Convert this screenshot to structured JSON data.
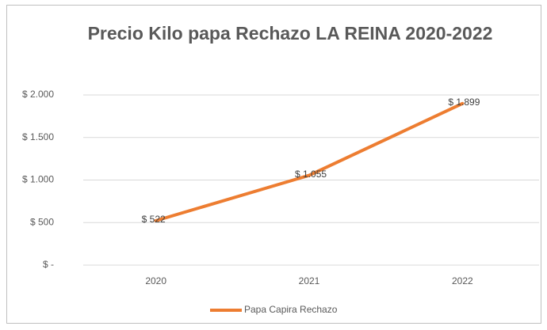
{
  "chart_data": {
    "type": "line",
    "title": "Precio Kilo papa Rechazo LA REINA 2020-2022",
    "categories": [
      "2020",
      "2021",
      "2022"
    ],
    "series": [
      {
        "name": "Papa Capira Rechazo",
        "color": "#ed7d31",
        "values": [
          522,
          1055,
          1899
        ],
        "value_labels": [
          "$ 522",
          "$ 1.055",
          "$ 1.899"
        ]
      }
    ],
    "ylim": [
      0,
      2000
    ],
    "yticks": [
      {
        "value": 0,
        "label": "$ -"
      },
      {
        "value": 500,
        "label": "$ 500"
      },
      {
        "value": 1000,
        "label": "$ 1.000"
      },
      {
        "value": 1500,
        "label": "$ 1.500"
      },
      {
        "value": 2000,
        "label": "$ 2.000"
      }
    ],
    "grid": true,
    "legend": "bottom"
  }
}
